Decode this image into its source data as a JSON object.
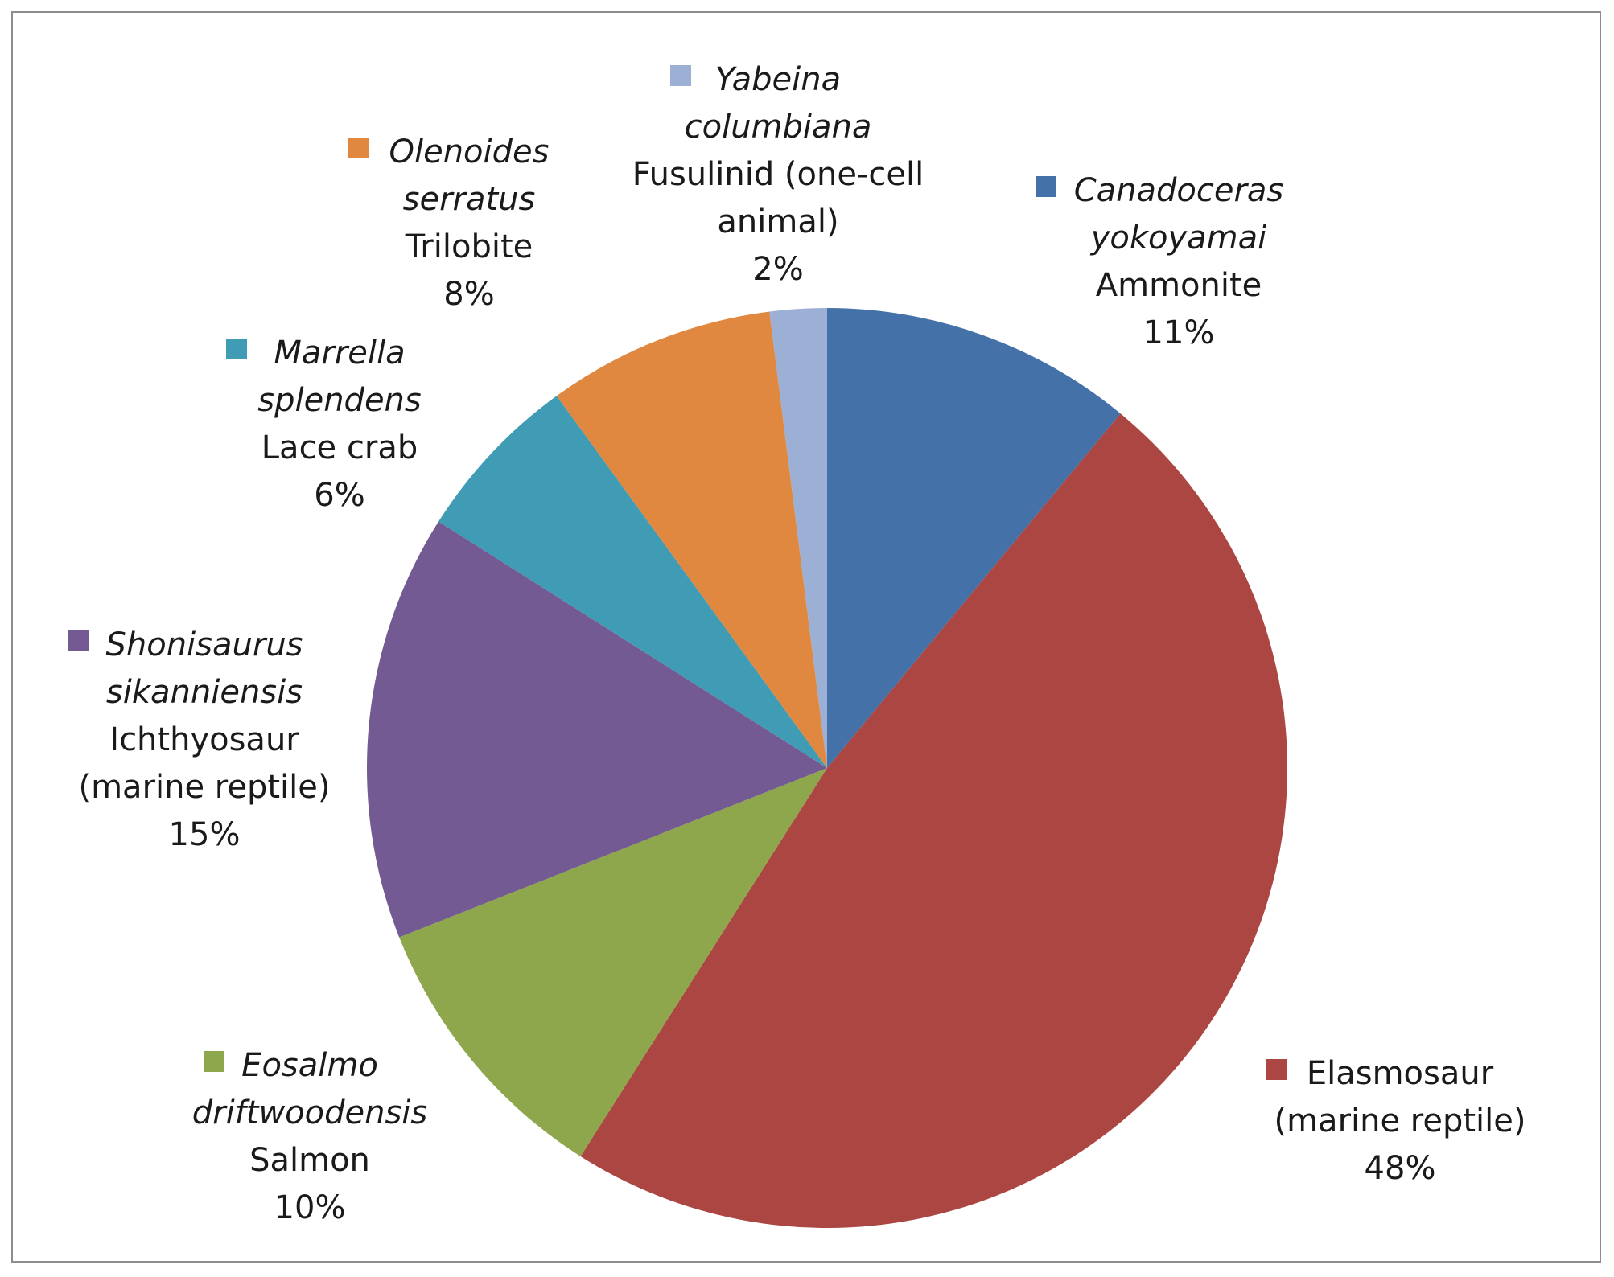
{
  "chart_data": {
    "type": "pie",
    "start_angle_deg": 0,
    "direction": "clockwise",
    "slices": [
      {
        "id": "canadoceras",
        "value": 11,
        "color": "#4472a8",
        "italic_name": [
          "Canadoceras",
          "yokoyamai"
        ],
        "common_name": [
          "Ammonite"
        ],
        "percent_label": "11%"
      },
      {
        "id": "elasmosaur",
        "value": 48,
        "color": "#ab4642",
        "italic_name": [],
        "common_name": [
          "Elasmosaur",
          "(marine reptile)"
        ],
        "percent_label": "48%"
      },
      {
        "id": "eosalmo",
        "value": 10,
        "color": "#8ea74d",
        "italic_name": [
          "Eosalmo",
          "driftwoodensis"
        ],
        "common_name": [
          "Salmon"
        ],
        "percent_label": "10%"
      },
      {
        "id": "shonisaurus",
        "value": 15,
        "color": "#745a93",
        "italic_name": [
          "Shonisaurus",
          "sikanniensis"
        ],
        "common_name": [
          "Ichthyosaur",
          "(marine reptile)"
        ],
        "percent_label": "15%"
      },
      {
        "id": "marrella",
        "value": 6,
        "color": "#409cb4",
        "italic_name": [
          "Marrella",
          "splendens"
        ],
        "common_name": [
          "Lace crab"
        ],
        "percent_label": "6%"
      },
      {
        "id": "olenoides",
        "value": 8,
        "color": "#e08840",
        "italic_name": [
          "Olenoides",
          "serratus"
        ],
        "common_name": [
          "Trilobite"
        ],
        "percent_label": "8%"
      },
      {
        "id": "yabeina",
        "value": 2,
        "color": "#9cb0d6",
        "italic_name": [
          "Yabeina",
          "columbiana"
        ],
        "common_name": [
          "Fusulinid (one-cell",
          "animal)"
        ],
        "percent_label": "2%"
      }
    ]
  }
}
